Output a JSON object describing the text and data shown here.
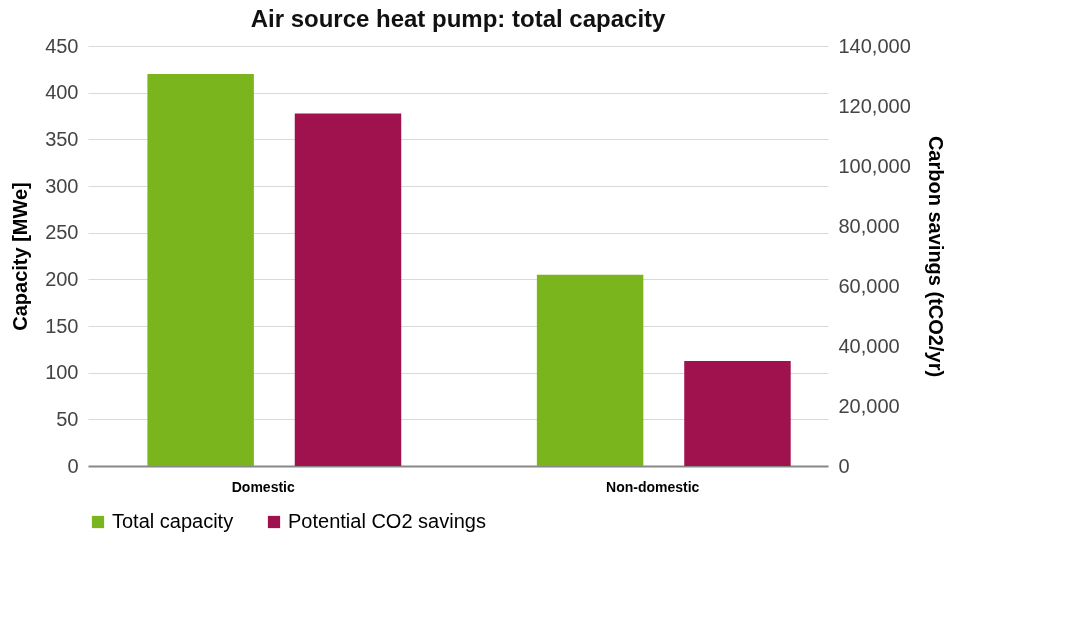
{
  "chart_data": {
    "type": "bar",
    "title": "Air source heat pump: total capacity",
    "ylabel": "Capacity [MWe]",
    "y2label": "Carbon savings (tCO2/yr)",
    "categories": [
      "Domestic",
      "Non-domestic"
    ],
    "series": [
      {
        "name": "Total capacity",
        "color": "#7ab51d",
        "values": [
          420,
          205
        ]
      },
      {
        "name": "Potential CO2 savings",
        "color": "#a0124e",
        "values": [
          117500,
          35000
        ],
        "axis": "y2"
      }
    ],
    "ylim": [
      0,
      450
    ],
    "yticks": [
      0,
      50,
      100,
      150,
      200,
      250,
      300,
      350,
      400,
      450
    ],
    "y2lim": [
      0,
      140000
    ],
    "y2ticks": [
      0,
      {
        "value": 20000,
        "label": "20,000"
      },
      {
        "value": 40000,
        "label": "40,000"
      },
      {
        "value": 60000,
        "label": "60,000"
      },
      {
        "value": 80000,
        "label": "80,000"
      },
      {
        "value": 100000,
        "label": "100,000"
      },
      {
        "value": 120000,
        "label": "120,000"
      },
      {
        "value": 140000,
        "label": "140,000"
      }
    ],
    "grid": "y",
    "legend": "bottom"
  }
}
